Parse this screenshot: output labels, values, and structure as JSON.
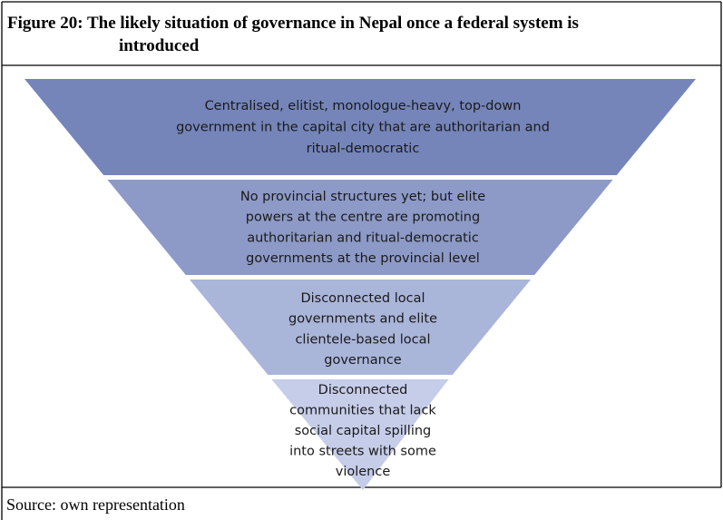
{
  "figure": {
    "title_lines": [
      "Figure 20: The likely situation of governance in Nepal once a federal system is",
      "introduced"
    ],
    "layers": [
      {
        "lines": [
          "Centralised, elitist, monologue-heavy, top-down",
          "government in the capital city that are authoritarian and",
          "ritual-democratic"
        ]
      },
      {
        "lines": [
          "No provincial structures yet; but elite",
          "powers at the centre are promoting",
          "authoritarian and ritual-democratic",
          "governments at the provincial level"
        ]
      },
      {
        "lines": [
          "Disconnected local",
          "governments and elite",
          "clientele-based local",
          "governance"
        ]
      },
      {
        "lines": [
          "Disconnected",
          "communities that lack",
          "social capital spilling",
          "into streets with some",
          "violence"
        ]
      }
    ],
    "source": "Source: own representation"
  }
}
